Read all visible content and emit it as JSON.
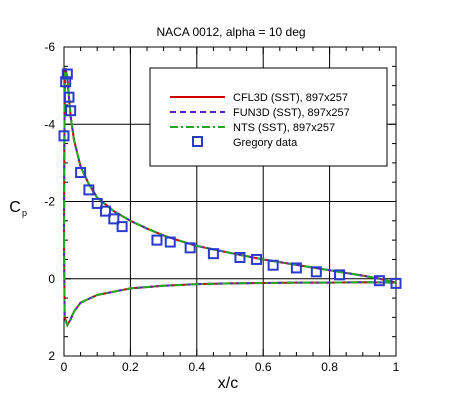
{
  "chart_data": {
    "type": "line",
    "title": "NACA 0012, alpha = 10 deg",
    "xlabel": "x/c",
    "ylabel": "C",
    "ylabel_sub": "p",
    "xlim": [
      0,
      1
    ],
    "ylim": [
      2,
      -6
    ],
    "y_inverted": true,
    "grid": true,
    "legend_position": "top-right",
    "x_ticks": [
      0,
      0.2,
      0.4,
      0.6,
      0.8,
      1
    ],
    "x_tick_labels": [
      "0",
      "0.2",
      "0.4",
      "0.6",
      "0.8",
      "1"
    ],
    "y_ticks": [
      -6,
      -4,
      -2,
      0,
      2
    ],
    "y_tick_labels": [
      "-6",
      "-4",
      "-2",
      "0",
      "2"
    ],
    "series": [
      {
        "name": "CFL3D (SST), 897x257",
        "color": "#cc0000",
        "dash": "solid",
        "upper": [
          [
            0.0,
            -1.0
          ],
          [
            0.001,
            -3.5
          ],
          [
            0.003,
            -5.3
          ],
          [
            0.005,
            -5.45
          ],
          [
            0.01,
            -5.2
          ],
          [
            0.02,
            -4.2
          ],
          [
            0.03,
            -3.6
          ],
          [
            0.05,
            -2.9
          ],
          [
            0.075,
            -2.45
          ],
          [
            0.1,
            -2.1
          ],
          [
            0.15,
            -1.75
          ],
          [
            0.2,
            -1.5
          ],
          [
            0.25,
            -1.3
          ],
          [
            0.3,
            -1.12
          ],
          [
            0.35,
            -0.98
          ],
          [
            0.4,
            -0.85
          ],
          [
            0.5,
            -0.67
          ],
          [
            0.6,
            -0.5
          ],
          [
            0.7,
            -0.36
          ],
          [
            0.8,
            -0.22
          ],
          [
            0.9,
            -0.08
          ],
          [
            0.95,
            0.0
          ],
          [
            1.0,
            0.1
          ]
        ],
        "lower": [
          [
            0.0,
            -1.0
          ],
          [
            0.002,
            1.0
          ],
          [
            0.01,
            1.2
          ],
          [
            0.02,
            1.05
          ],
          [
            0.03,
            0.85
          ],
          [
            0.05,
            0.62
          ],
          [
            0.1,
            0.42
          ],
          [
            0.2,
            0.25
          ],
          [
            0.3,
            0.18
          ],
          [
            0.4,
            0.14
          ],
          [
            0.5,
            0.12
          ],
          [
            0.6,
            0.11
          ],
          [
            0.7,
            0.1
          ],
          [
            0.8,
            0.1
          ],
          [
            0.9,
            0.09
          ],
          [
            1.0,
            0.1
          ]
        ]
      },
      {
        "name": "FUN3D (SST), 897x257",
        "color": "#5a1ecc",
        "dash": "6,4",
        "upper": [
          [
            0.0,
            -1.0
          ],
          [
            0.001,
            -3.5
          ],
          [
            0.003,
            -5.3
          ],
          [
            0.005,
            -5.45
          ],
          [
            0.01,
            -5.2
          ],
          [
            0.02,
            -4.2
          ],
          [
            0.03,
            -3.6
          ],
          [
            0.05,
            -2.9
          ],
          [
            0.075,
            -2.45
          ],
          [
            0.1,
            -2.1
          ],
          [
            0.15,
            -1.75
          ],
          [
            0.2,
            -1.5
          ],
          [
            0.25,
            -1.3
          ],
          [
            0.3,
            -1.12
          ],
          [
            0.35,
            -0.98
          ],
          [
            0.4,
            -0.85
          ],
          [
            0.5,
            -0.67
          ],
          [
            0.6,
            -0.5
          ],
          [
            0.7,
            -0.36
          ],
          [
            0.8,
            -0.22
          ],
          [
            0.9,
            -0.08
          ],
          [
            0.95,
            0.0
          ],
          [
            1.0,
            0.1
          ]
        ],
        "lower": [
          [
            0.0,
            -1.0
          ],
          [
            0.002,
            1.0
          ],
          [
            0.01,
            1.2
          ],
          [
            0.02,
            1.05
          ],
          [
            0.03,
            0.85
          ],
          [
            0.05,
            0.62
          ],
          [
            0.1,
            0.42
          ],
          [
            0.2,
            0.25
          ],
          [
            0.3,
            0.18
          ],
          [
            0.4,
            0.14
          ],
          [
            0.5,
            0.12
          ],
          [
            0.6,
            0.11
          ],
          [
            0.7,
            0.1
          ],
          [
            0.8,
            0.1
          ],
          [
            0.9,
            0.09
          ],
          [
            1.0,
            0.1
          ]
        ]
      },
      {
        "name": "NTS (SST), 897x257",
        "color": "#22aa22",
        "dash": "8,3,2,3",
        "upper": [
          [
            0.0,
            -1.0
          ],
          [
            0.001,
            -3.5
          ],
          [
            0.003,
            -5.3
          ],
          [
            0.005,
            -5.45
          ],
          [
            0.01,
            -5.2
          ],
          [
            0.02,
            -4.2
          ],
          [
            0.03,
            -3.6
          ],
          [
            0.05,
            -2.9
          ],
          [
            0.075,
            -2.45
          ],
          [
            0.1,
            -2.1
          ],
          [
            0.15,
            -1.75
          ],
          [
            0.2,
            -1.5
          ],
          [
            0.25,
            -1.3
          ],
          [
            0.3,
            -1.12
          ],
          [
            0.35,
            -0.98
          ],
          [
            0.4,
            -0.85
          ],
          [
            0.5,
            -0.67
          ],
          [
            0.6,
            -0.5
          ],
          [
            0.7,
            -0.36
          ],
          [
            0.8,
            -0.22
          ],
          [
            0.9,
            -0.08
          ],
          [
            0.95,
            0.0
          ],
          [
            1.0,
            0.1
          ]
        ],
        "lower": [
          [
            0.0,
            -1.0
          ],
          [
            0.002,
            1.0
          ],
          [
            0.01,
            1.2
          ],
          [
            0.02,
            1.05
          ],
          [
            0.03,
            0.85
          ],
          [
            0.05,
            0.62
          ],
          [
            0.1,
            0.42
          ],
          [
            0.2,
            0.25
          ],
          [
            0.3,
            0.18
          ],
          [
            0.4,
            0.14
          ],
          [
            0.5,
            0.12
          ],
          [
            0.6,
            0.11
          ],
          [
            0.7,
            0.1
          ],
          [
            0.8,
            0.1
          ],
          [
            0.9,
            0.09
          ],
          [
            1.0,
            0.1
          ]
        ]
      }
    ],
    "scatter": {
      "name": "Gregory data",
      "color": "#2a3acc",
      "points": [
        [
          0.0,
          -3.7
        ],
        [
          0.005,
          -5.1
        ],
        [
          0.01,
          -5.3
        ],
        [
          0.015,
          -4.7
        ],
        [
          0.02,
          -4.35
        ],
        [
          0.05,
          -2.75
        ],
        [
          0.075,
          -2.3
        ],
        [
          0.1,
          -1.95
        ],
        [
          0.125,
          -1.75
        ],
        [
          0.15,
          -1.55
        ],
        [
          0.175,
          -1.35
        ],
        [
          0.28,
          -1.0
        ],
        [
          0.32,
          -0.95
        ],
        [
          0.38,
          -0.8
        ],
        [
          0.45,
          -0.65
        ],
        [
          0.53,
          -0.55
        ],
        [
          0.58,
          -0.5
        ],
        [
          0.63,
          -0.35
        ],
        [
          0.7,
          -0.28
        ],
        [
          0.76,
          -0.18
        ],
        [
          0.83,
          -0.1
        ],
        [
          0.95,
          0.05
        ],
        [
          1.0,
          0.12
        ]
      ]
    }
  }
}
